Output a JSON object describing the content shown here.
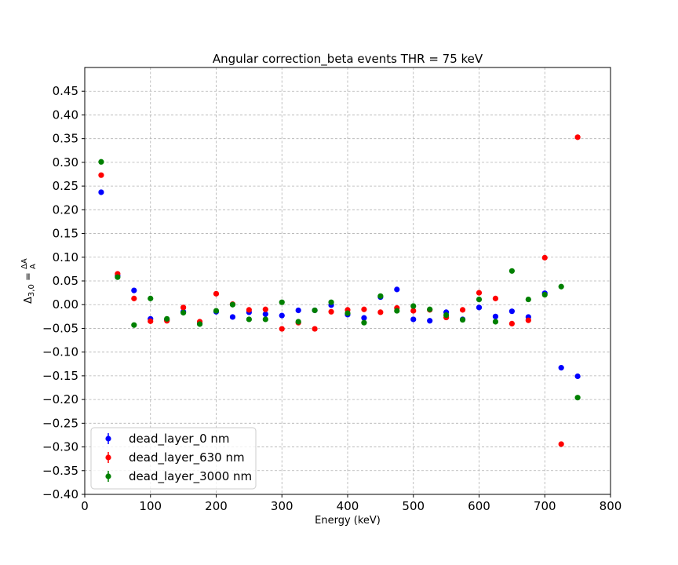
{
  "chart_data": {
    "type": "scatter",
    "title": "Angular correction_beta events THR = 75 keV",
    "xlabel": "Energy (keV)",
    "ylabel": "Δ3,0 = ΔA/A",
    "xlim": [
      0,
      800
    ],
    "ylim": [
      -0.4,
      0.5
    ],
    "xticks": [
      "0",
      "100",
      "200",
      "300",
      "400",
      "500",
      "600",
      "700",
      "800"
    ],
    "yticks": [
      "−0.40",
      "−0.35",
      "−0.30",
      "−0.25",
      "−0.20",
      "−0.15",
      "−0.10",
      "−0.05",
      "0.00",
      "0.05",
      "0.10",
      "0.15",
      "0.20",
      "0.25",
      "0.30",
      "0.35",
      "0.40",
      "0.45"
    ],
    "grid": true,
    "legend_position": "lower-left",
    "x": [
      25,
      50,
      75,
      100,
      125,
      150,
      175,
      200,
      225,
      250,
      275,
      300,
      325,
      350,
      375,
      400,
      425,
      450,
      475,
      500,
      525,
      550,
      575,
      600,
      625,
      650,
      675,
      700,
      725,
      750
    ],
    "series": [
      {
        "name": "dead_layer_0 nm",
        "color": "#0000ff",
        "values": [
          0.237,
          0.061,
          0.03,
          -0.03,
          -0.032,
          -0.015,
          -0.04,
          -0.015,
          -0.026,
          -0.016,
          -0.02,
          -0.023,
          -0.012,
          -0.012,
          -0.001,
          -0.021,
          -0.028,
          0.016,
          0.032,
          -0.031,
          -0.034,
          -0.016,
          -0.031,
          -0.006,
          -0.025,
          -0.014,
          -0.026,
          0.024,
          -0.133,
          -0.151
        ]
      },
      {
        "name": "dead_layer_630 nm",
        "color": "#ff0000",
        "values": [
          0.273,
          0.065,
          0.013,
          -0.035,
          -0.034,
          -0.006,
          -0.036,
          0.023,
          0.001,
          -0.011,
          -0.01,
          -0.051,
          -0.038,
          -0.051,
          -0.015,
          -0.011,
          -0.01,
          -0.016,
          -0.007,
          -0.013,
          -0.011,
          -0.027,
          -0.011,
          0.025,
          0.013,
          -0.04,
          -0.033,
          0.099,
          -0.294,
          0.353
        ]
      },
      {
        "name": "dead_layer_3000 nm",
        "color": "#008000",
        "values": [
          0.301,
          0.058,
          -0.043,
          0.013,
          -0.03,
          -0.017,
          -0.041,
          -0.013,
          0.0,
          -0.031,
          -0.031,
          0.005,
          -0.036,
          -0.012,
          0.005,
          -0.018,
          -0.038,
          0.018,
          -0.013,
          -0.003,
          -0.01,
          -0.022,
          -0.032,
          0.011,
          -0.036,
          0.071,
          0.011,
          0.021,
          0.038,
          -0.196
        ]
      }
    ]
  }
}
